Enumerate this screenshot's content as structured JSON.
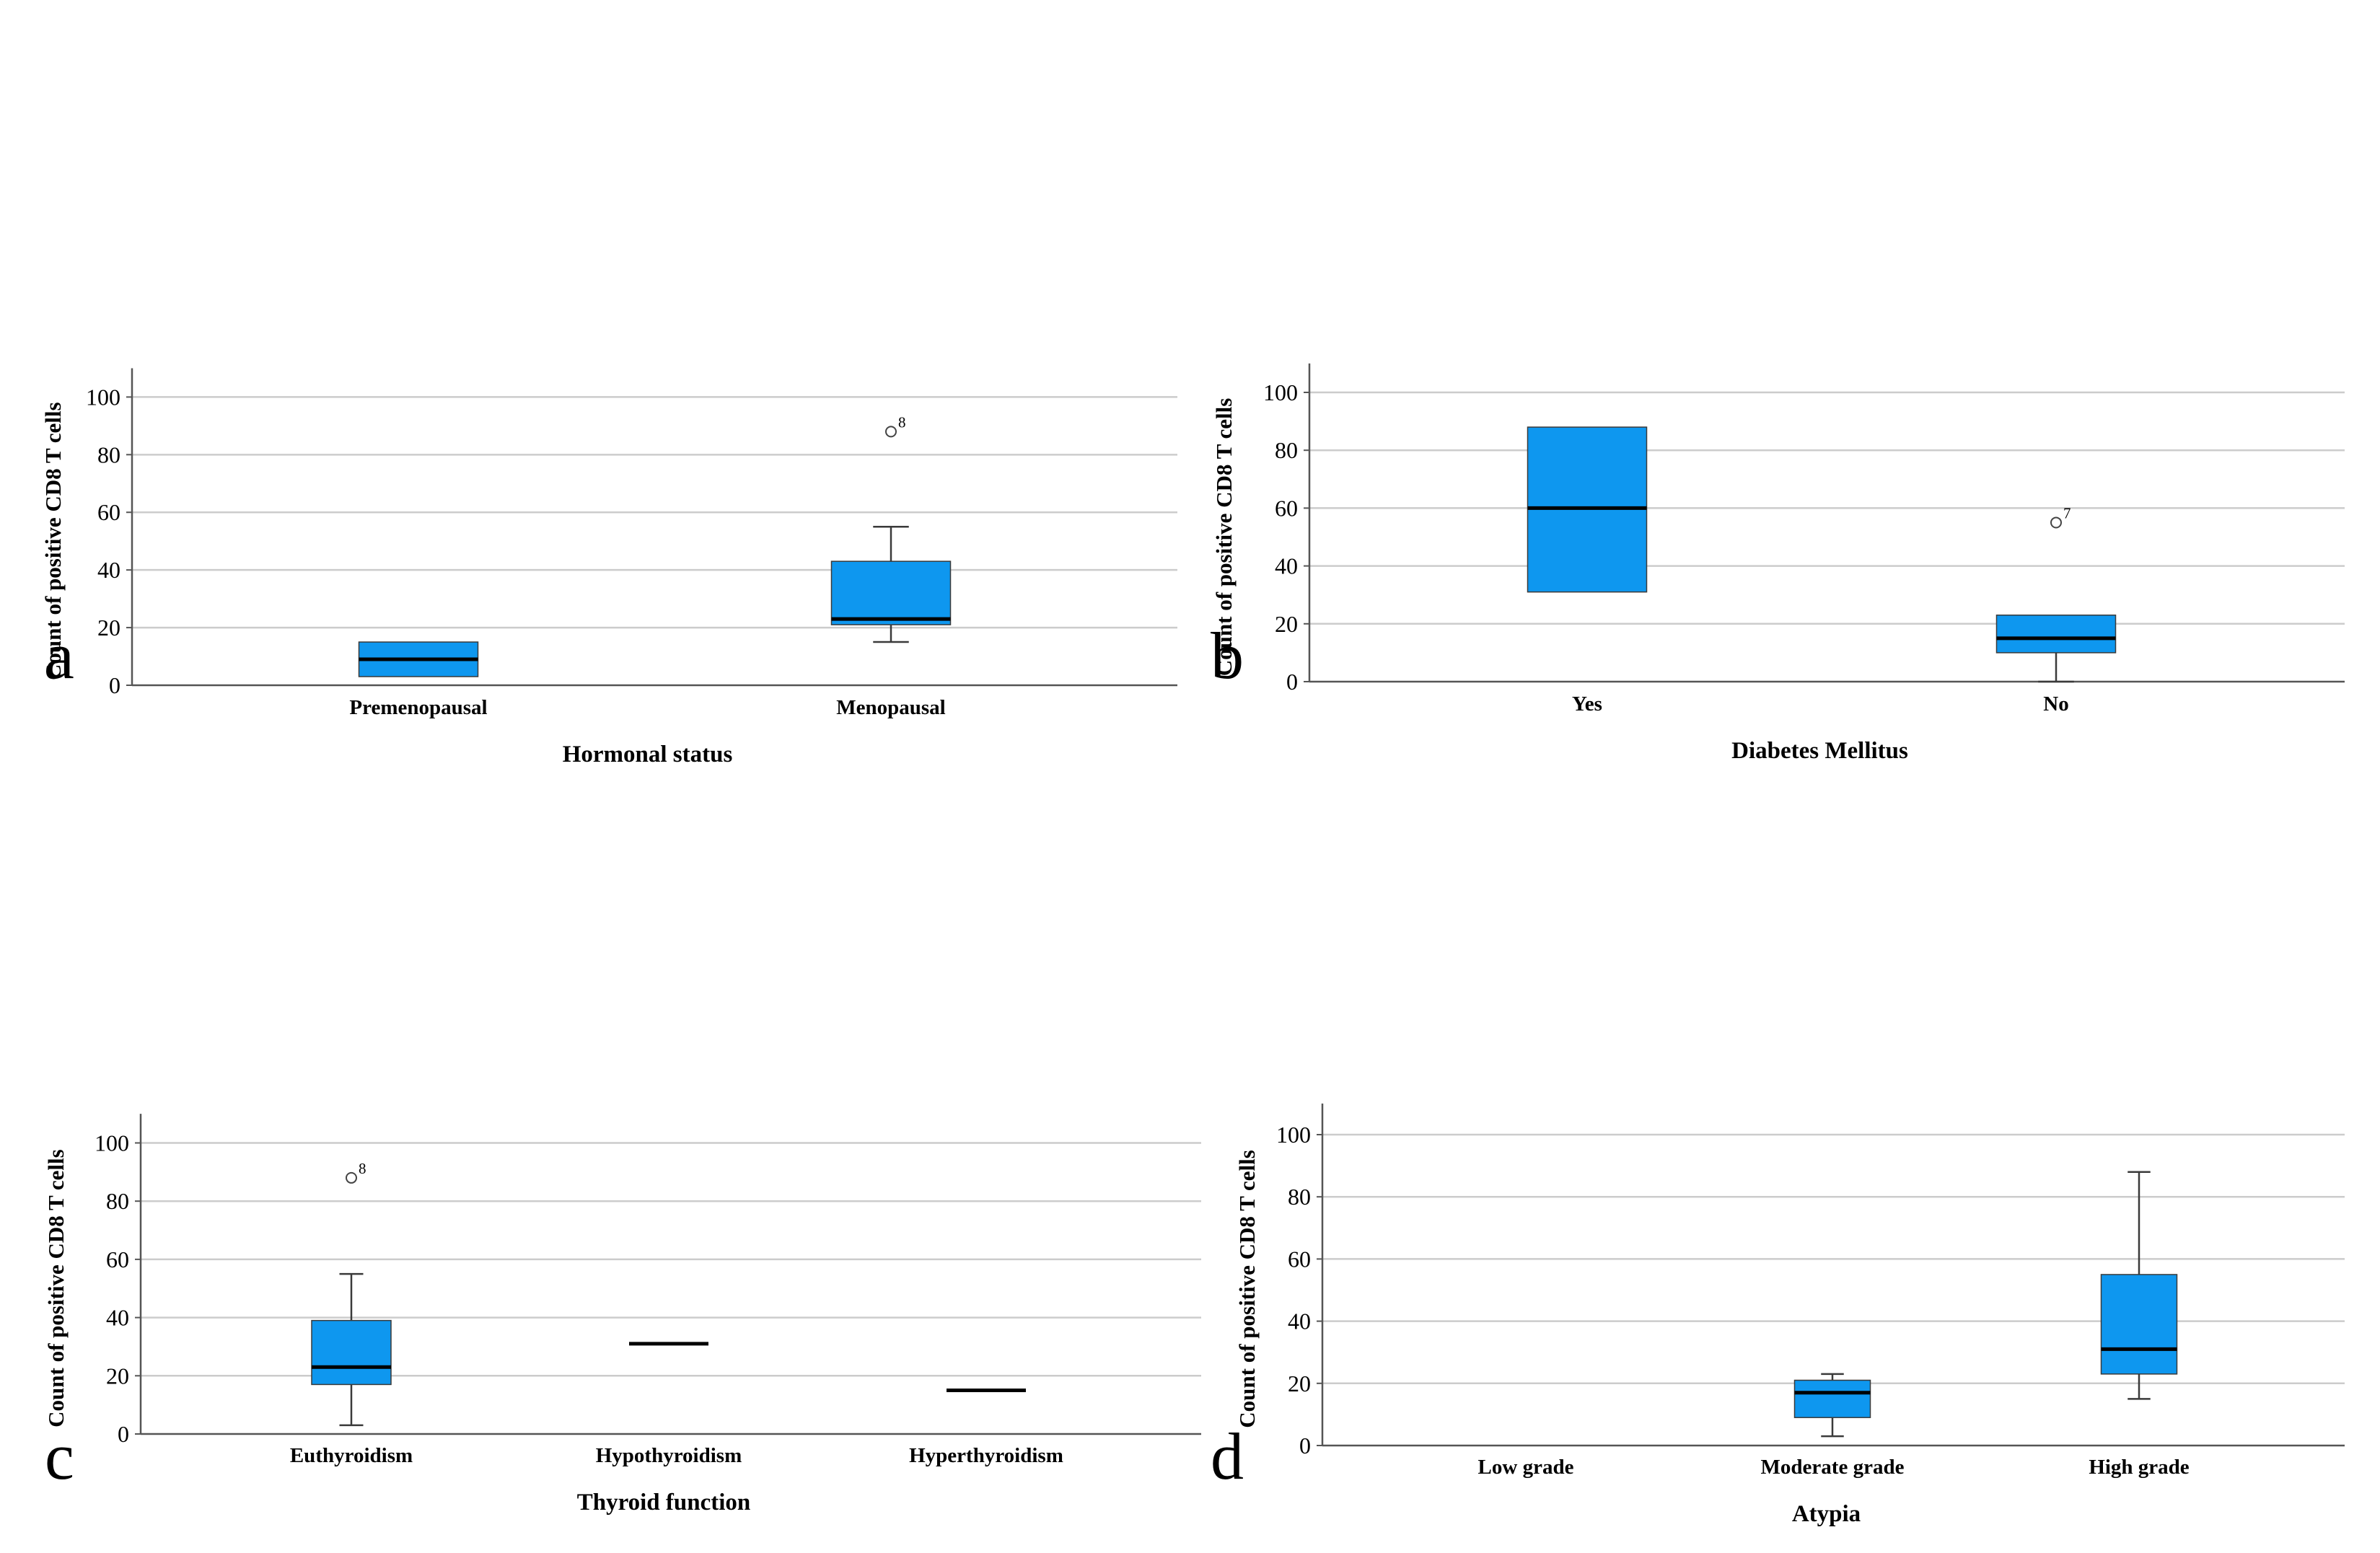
{
  "figure": {
    "colors": {
      "box_fill": "#0e97ef",
      "box_stroke": "#3a3a3a",
      "median": "#000000",
      "grid": "#cccccc",
      "axis": "#555555"
    }
  },
  "chart_data": [
    {
      "type": "boxplot",
      "panel_label": "a",
      "xlabel": "Hormonal status",
      "ylabel": "Count of positive CD8 T cells",
      "ylim": [
        0,
        110
      ],
      "yticks": [
        0,
        20,
        40,
        60,
        80,
        100
      ],
      "grid": true,
      "categories": [
        "Premenopausal",
        "Menopausal"
      ],
      "boxes": [
        {
          "whisker_low": 3,
          "q1": 3,
          "median": 9,
          "q3": 15,
          "whisker_high": 15,
          "outliers": []
        },
        {
          "whisker_low": 15,
          "q1": 21,
          "median": 23,
          "q3": 43,
          "whisker_high": 55,
          "outliers": [
            {
              "value": 88,
              "label": "8"
            }
          ]
        }
      ]
    },
    {
      "type": "boxplot",
      "panel_label": "b",
      "xlabel": "Diabetes Mellitus",
      "ylabel": "Count of positive CD8 T cells",
      "ylim": [
        0,
        110
      ],
      "yticks": [
        0,
        20,
        40,
        60,
        80,
        100
      ],
      "grid": true,
      "categories": [
        "Yes",
        "No"
      ],
      "boxes": [
        {
          "whisker_low": 31,
          "q1": 31,
          "median": 60,
          "q3": 88,
          "whisker_high": 88,
          "outliers": []
        },
        {
          "whisker_low": 0,
          "q1": 10,
          "median": 15,
          "q3": 23,
          "whisker_high": 23,
          "outliers": [
            {
              "value": 55,
              "label": "7"
            }
          ]
        }
      ]
    },
    {
      "type": "boxplot",
      "panel_label": "c",
      "xlabel": "Thyroid function",
      "ylabel": "Count of positive CD8 T cells",
      "ylim": [
        0,
        110
      ],
      "yticks": [
        0,
        20,
        40,
        60,
        80,
        100
      ],
      "grid": true,
      "categories": [
        "Euthyroidism",
        "Hypothyroidism",
        "Hyperthyroidism"
      ],
      "boxes": [
        {
          "whisker_low": 3,
          "q1": 17,
          "median": 23,
          "q3": 39,
          "whisker_high": 55,
          "outliers": [
            {
              "value": 88,
              "label": "8"
            }
          ]
        },
        {
          "whisker_low": 31,
          "q1": 31,
          "median": 31,
          "q3": 31,
          "whisker_high": 31,
          "outliers": []
        },
        {
          "whisker_low": 15,
          "q1": 15,
          "median": 15,
          "q3": 15,
          "whisker_high": 15,
          "outliers": []
        }
      ]
    },
    {
      "type": "boxplot",
      "panel_label": "d",
      "xlabel": "Atypia",
      "ylabel": "Count of positive CD8 T cells",
      "ylim": [
        0,
        110
      ],
      "yticks": [
        0,
        20,
        40,
        60,
        80,
        100
      ],
      "grid": true,
      "categories": [
        "Low grade",
        "Moderate grade",
        "High grade"
      ],
      "boxes": [
        null,
        {
          "whisker_low": 3,
          "q1": 9,
          "median": 17,
          "q3": 21,
          "whisker_high": 23,
          "outliers": []
        },
        {
          "whisker_low": 15,
          "q1": 23,
          "median": 31,
          "q3": 55,
          "whisker_high": 88,
          "outliers": []
        }
      ]
    }
  ]
}
